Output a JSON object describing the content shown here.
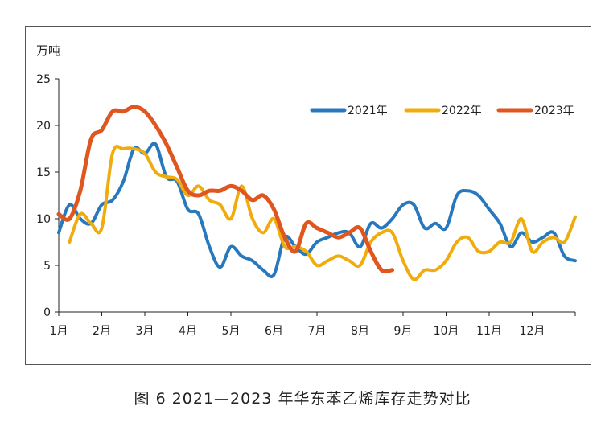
{
  "caption": "图 6  2021—2023 年华东苯乙烯库存走势对比",
  "chart_data": {
    "type": "line",
    "ylabel": "万吨",
    "ylim": [
      0,
      25
    ],
    "yticks": [
      0,
      5,
      10,
      15,
      20,
      25
    ],
    "xlim": [
      1,
      13
    ],
    "x_ticks": [
      {
        "label": "1月",
        "x": 1
      },
      {
        "label": "2月",
        "x": 2
      },
      {
        "label": "3月",
        "x": 3
      },
      {
        "label": "4月",
        "x": 4
      },
      {
        "label": "5月",
        "x": 5
      },
      {
        "label": "6月",
        "x": 6
      },
      {
        "label": "7月",
        "x": 7
      },
      {
        "label": "8月",
        "x": 8
      },
      {
        "label": "9月",
        "x": 9
      },
      {
        "label": "10月",
        "x": 10
      },
      {
        "label": "11月",
        "x": 11
      },
      {
        "label": "12月",
        "x": 12
      }
    ],
    "legend_position": "top-right",
    "series": [
      {
        "name": "2021年",
        "color": "#2878bd",
        "x": [
          1.0,
          1.25,
          1.5,
          1.75,
          2.0,
          2.25,
          2.5,
          2.75,
          3.0,
          3.25,
          3.5,
          3.75,
          4.0,
          4.25,
          4.5,
          4.75,
          5.0,
          5.25,
          5.5,
          5.75,
          6.0,
          6.25,
          6.5,
          6.75,
          7.0,
          7.25,
          7.5,
          7.75,
          8.0,
          8.25,
          8.5,
          8.75,
          9.0,
          9.25,
          9.5,
          9.75,
          10.0,
          10.25,
          10.5,
          10.75,
          11.0,
          11.25,
          11.5,
          11.75,
          12.0,
          12.25,
          12.5,
          12.75,
          13.0
        ],
        "y": [
          8.5,
          11.5,
          10.0,
          9.5,
          11.5,
          12.0,
          14.0,
          17.5,
          17.0,
          18.0,
          14.5,
          14.0,
          11.0,
          10.5,
          7.0,
          4.8,
          7.0,
          6.0,
          5.5,
          4.5,
          4.0,
          8.0,
          7.0,
          6.2,
          7.5,
          8.0,
          8.5,
          8.5,
          7.0,
          9.5,
          9.0,
          10.0,
          11.5,
          11.5,
          9.0,
          9.5,
          9.0,
          12.5,
          13.0,
          12.5,
          11.0,
          9.5,
          7.0,
          8.5,
          7.5,
          8.0,
          8.5,
          6.0,
          5.5
        ]
      },
      {
        "name": "2022年",
        "color": "#f0ac0d",
        "x": [
          1.25,
          1.5,
          1.75,
          2.0,
          2.25,
          2.5,
          2.75,
          3.0,
          3.25,
          3.5,
          3.75,
          4.0,
          4.25,
          4.5,
          4.75,
          5.0,
          5.25,
          5.5,
          5.75,
          6.0,
          6.25,
          6.5,
          6.75,
          7.0,
          7.25,
          7.5,
          7.75,
          8.0,
          8.25,
          8.5,
          8.75,
          9.0,
          9.25,
          9.5,
          9.75,
          10.0,
          10.25,
          10.5,
          10.75,
          11.0,
          11.25,
          11.5,
          11.75,
          12.0,
          12.25,
          12.5,
          12.75,
          13.0
        ],
        "y": [
          7.5,
          10.5,
          9.5,
          9.0,
          17.0,
          17.5,
          17.5,
          17.0,
          15.0,
          14.5,
          14.2,
          12.5,
          13.5,
          12.0,
          11.5,
          10.0,
          13.5,
          10.0,
          8.5,
          10.0,
          7.0,
          7.0,
          6.5,
          5.0,
          5.5,
          6.0,
          5.5,
          5.0,
          7.5,
          8.5,
          8.5,
          5.5,
          3.5,
          4.5,
          4.5,
          5.5,
          7.5,
          8.0,
          6.5,
          6.5,
          7.5,
          7.5,
          10.0,
          6.5,
          7.5,
          8.0,
          7.5,
          10.2
        ]
      },
      {
        "name": "2023年",
        "color": "#e0561f",
        "x": [
          1.0,
          1.25,
          1.5,
          1.75,
          2.0,
          2.25,
          2.5,
          2.75,
          3.0,
          3.25,
          3.5,
          3.75,
          4.0,
          4.25,
          4.5,
          4.75,
          5.0,
          5.25,
          5.5,
          5.75,
          6.0,
          6.25,
          6.5,
          6.75,
          7.0,
          7.25,
          7.5,
          7.75,
          8.0,
          8.25,
          8.5,
          8.75
        ],
        "y": [
          10.5,
          10.0,
          13.0,
          18.5,
          19.5,
          21.5,
          21.5,
          22.0,
          21.5,
          20.0,
          18.0,
          15.5,
          13.0,
          12.5,
          13.0,
          13.0,
          13.5,
          13.0,
          12.0,
          12.5,
          11.0,
          8.0,
          6.5,
          9.5,
          9.0,
          8.5,
          8.0,
          8.5,
          9.0,
          6.5,
          4.5,
          4.5
        ]
      }
    ]
  }
}
